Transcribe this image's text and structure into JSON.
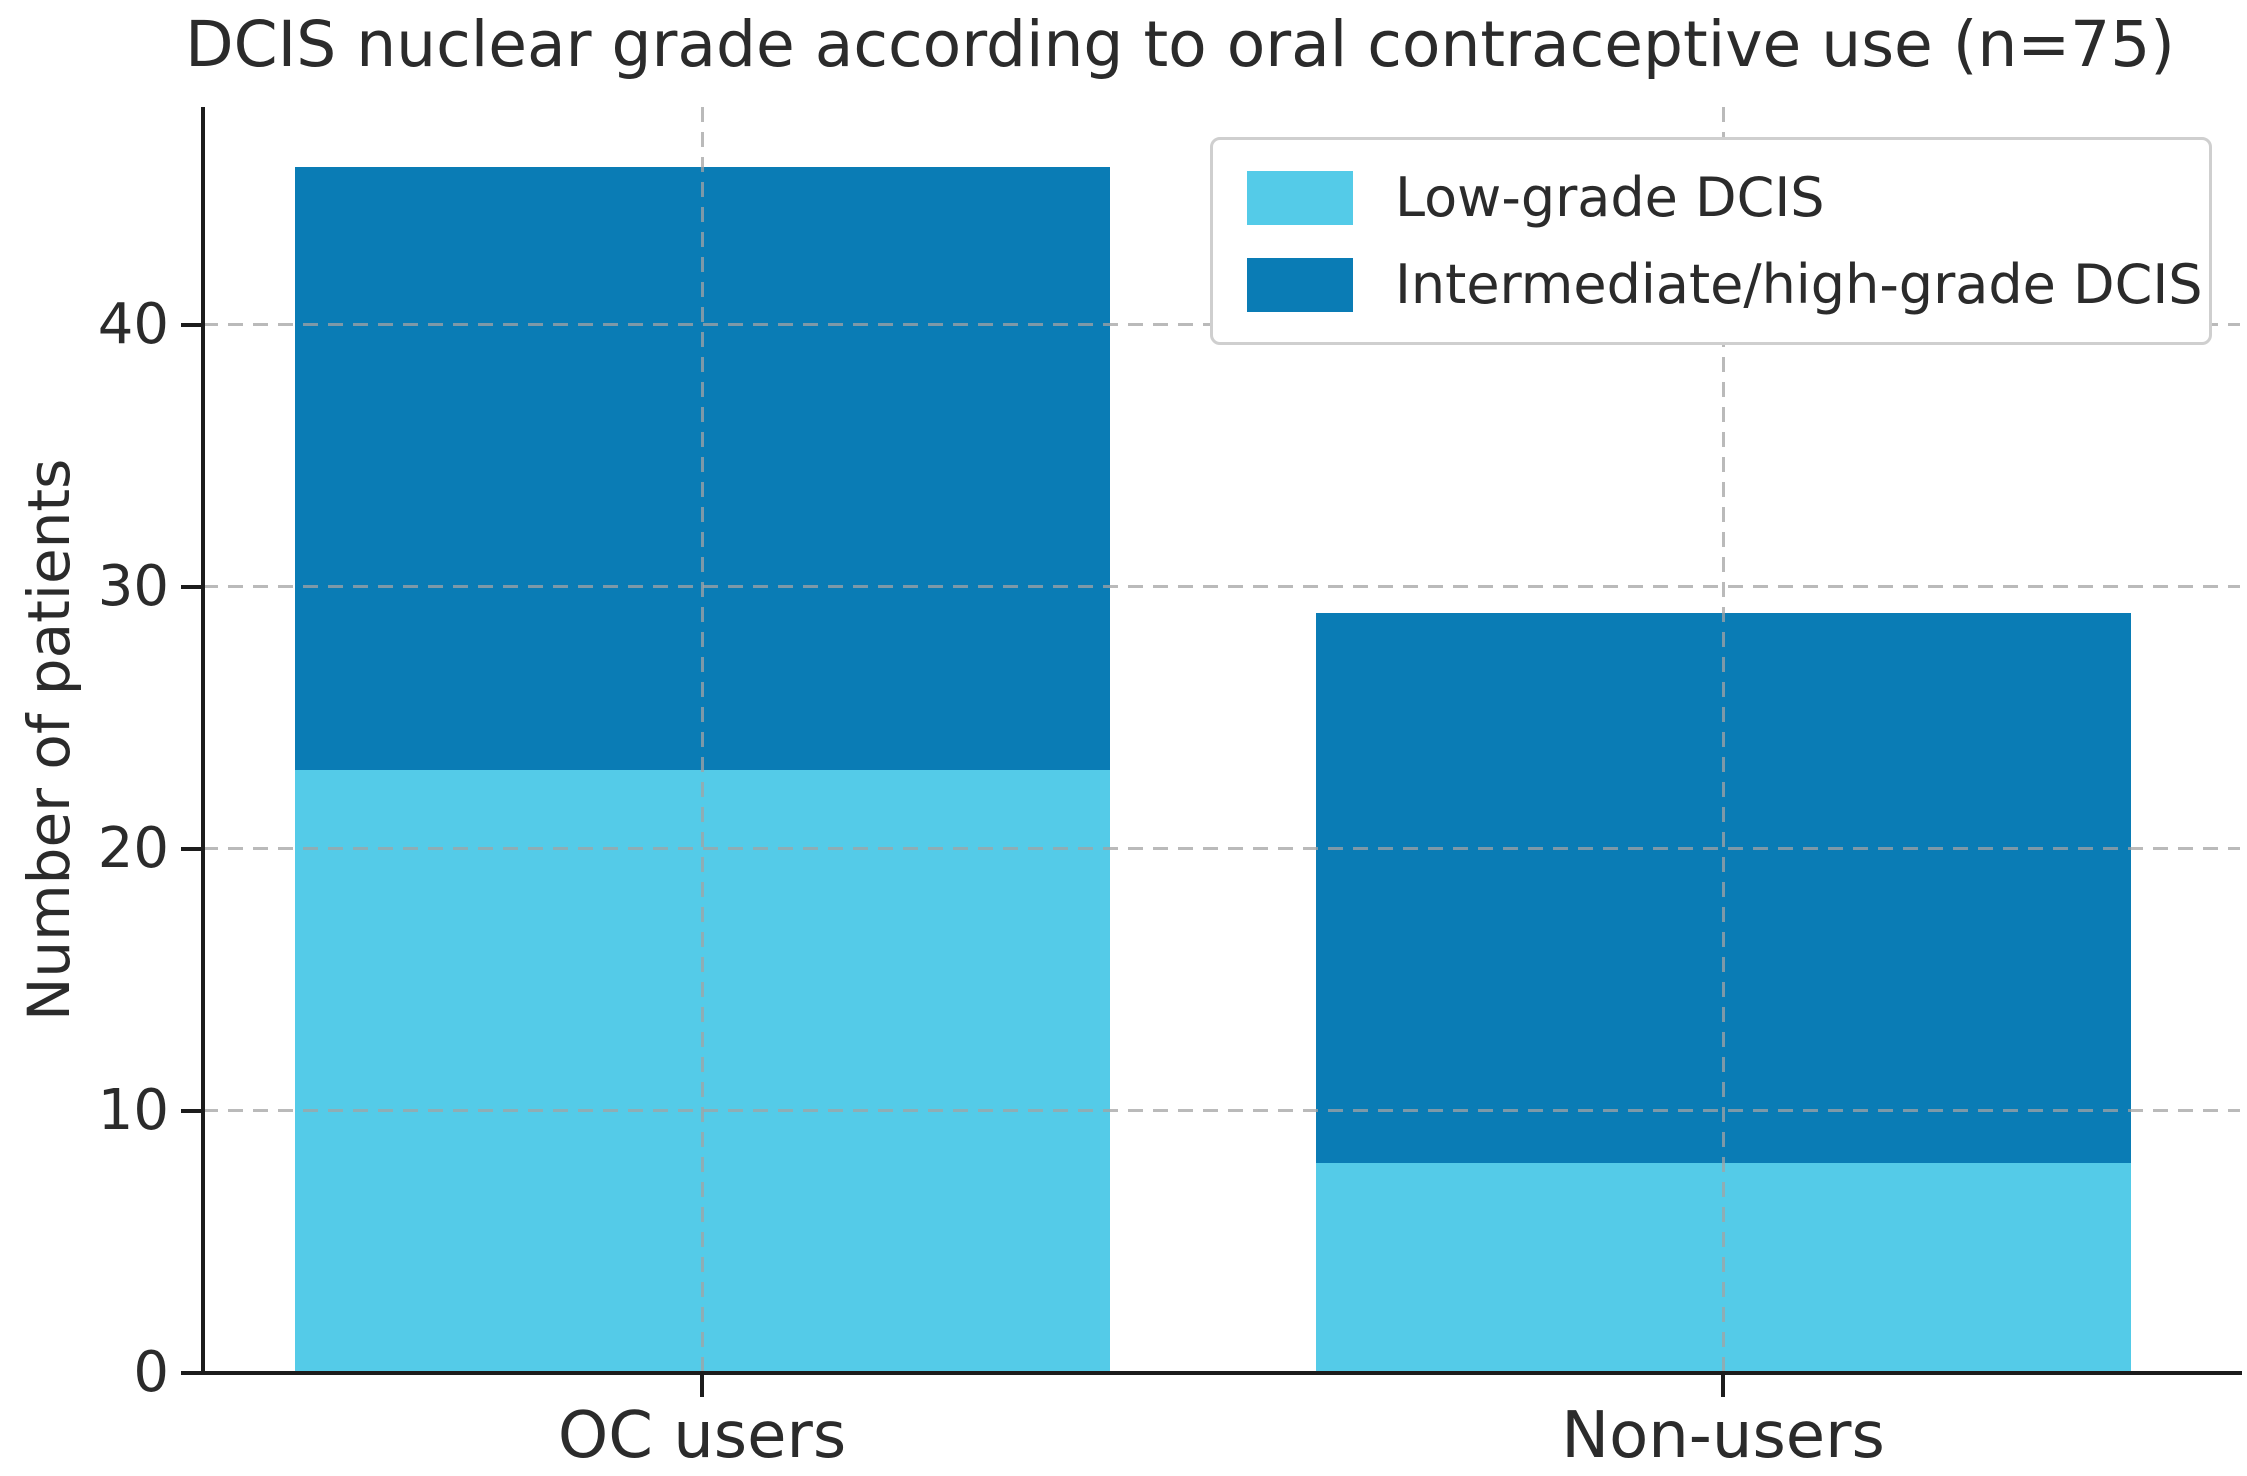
{
  "chart_data": {
    "type": "bar",
    "stacked": true,
    "title": "DCIS nuclear grade according to oral contraceptive use (n=75)",
    "ylabel": "Number of patients",
    "categories": [
      "OC users",
      "Non-users"
    ],
    "series": [
      {
        "name": "Low-grade DCIS",
        "color": "#54CBE8",
        "values": [
          23,
          8
        ]
      },
      {
        "name": "Intermediate/high-grade DCIS",
        "color": "#0A7CB5",
        "values": [
          23,
          21
        ]
      }
    ],
    "totals": [
      46,
      29
    ],
    "n_total": 75,
    "yticks": [
      0,
      10,
      20,
      30,
      40
    ],
    "ylim": [
      0,
      48.3
    ],
    "grid": {
      "style": "dashed",
      "color": "#a3a3a3",
      "horizontal": true,
      "vertical": true,
      "drawn_over_bars": true
    },
    "legend": {
      "position": "upper right",
      "entries": [
        "Low-grade DCIS",
        "Intermediate/high-grade DCIS"
      ]
    },
    "axis_color": "#1c1c1c",
    "text_color": "#2b2b2b"
  }
}
